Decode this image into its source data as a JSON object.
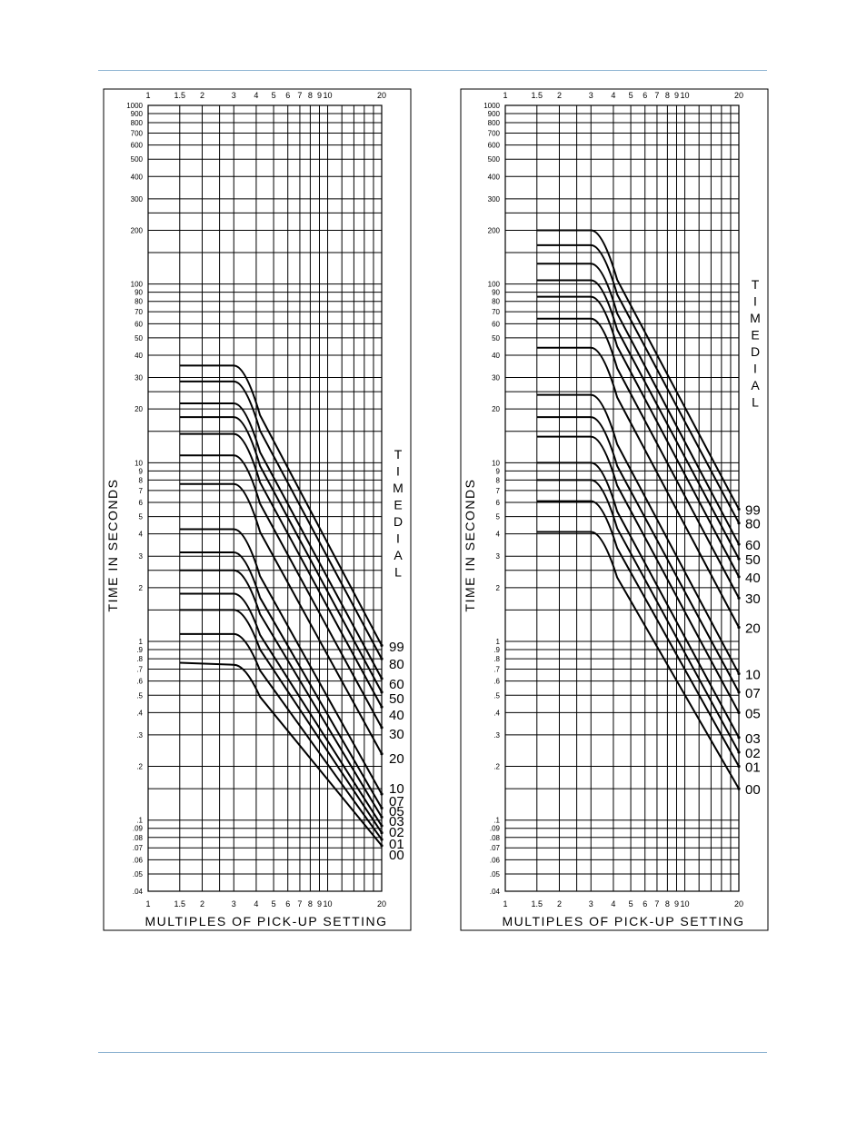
{
  "page": {
    "rule_color": "#8fb4d2"
  },
  "chart_data": [
    {
      "type": "line",
      "xscale": "log",
      "yscale": "log",
      "xlim": [
        1,
        20
      ],
      "ylim": [
        0.04,
        1000
      ],
      "xlabel": "MULTIPLES OF PICK-UP SETTING",
      "ylabel": "TIME IN SECONDS",
      "legend_title": "TIME DIAL",
      "legend_position": "right",
      "grid": true,
      "x_ticks": [
        "1",
        "1.5",
        "2",
        "3",
        "4",
        "5",
        "6",
        "7",
        "8",
        "9",
        "10",
        "20"
      ],
      "y_ticks": [
        "1000",
        "900",
        "800",
        "700",
        "600",
        "500",
        "400",
        "300",
        "200",
        "100",
        "90",
        "80",
        "70",
        "60",
        "50",
        "40",
        "30",
        "20",
        "10",
        "9",
        "8",
        "7",
        "6",
        "5",
        "4",
        "3",
        "2",
        "1",
        ".9",
        ".8",
        ".7",
        ".6",
        ".5",
        ".4",
        ".3",
        ".2",
        ".1",
        ".09",
        ".08",
        ".07",
        ".06",
        ".05",
        ".04"
      ],
      "series": [
        {
          "name": "99",
          "x": [
            1.5,
            3,
            20
          ],
          "y": [
            35,
            35,
            0.95
          ]
        },
        {
          "name": "80",
          "x": [
            1.5,
            3,
            20
          ],
          "y": [
            28.5,
            28.5,
            0.8
          ]
        },
        {
          "name": "60",
          "x": [
            1.5,
            3,
            20
          ],
          "y": [
            21.5,
            21.5,
            0.62
          ]
        },
        {
          "name": "50",
          "x": [
            1.5,
            3,
            20
          ],
          "y": [
            18,
            18,
            0.52
          ]
        },
        {
          "name": "40",
          "x": [
            1.5,
            3,
            20
          ],
          "y": [
            14.5,
            14.5,
            0.43
          ]
        },
        {
          "name": "30",
          "x": [
            1.5,
            3,
            20
          ],
          "y": [
            11,
            11,
            0.33
          ]
        },
        {
          "name": "20",
          "x": [
            1.5,
            3,
            20
          ],
          "y": [
            7.6,
            7.6,
            0.235
          ]
        },
        {
          "name": "10",
          "x": [
            1.5,
            3,
            20
          ],
          "y": [
            4.25,
            4.25,
            0.14
          ]
        },
        {
          "name": "07",
          "x": [
            1.5,
            3,
            20
          ],
          "y": [
            3.15,
            3.15,
            0.117
          ]
        },
        {
          "name": "05",
          "x": [
            1.5,
            3,
            20
          ],
          "y": [
            2.5,
            2.5,
            0.104
          ]
        },
        {
          "name": "03",
          "x": [
            1.5,
            3,
            20
          ],
          "y": [
            1.85,
            1.85,
            0.093
          ]
        },
        {
          "name": "02",
          "x": [
            1.5,
            3,
            20
          ],
          "y": [
            1.5,
            1.5,
            0.085
          ]
        },
        {
          "name": "01",
          "x": [
            1.5,
            3,
            20
          ],
          "y": [
            1.1,
            1.1,
            0.078
          ]
        },
        {
          "name": "00",
          "x": [
            1.5,
            3,
            20
          ],
          "y": [
            0.76,
            0.74,
            0.072
          ]
        }
      ]
    },
    {
      "type": "line",
      "xscale": "log",
      "yscale": "log",
      "xlim": [
        1,
        20
      ],
      "ylim": [
        0.04,
        1000
      ],
      "xlabel": "MULTIPLES OF PICK-UP SETTING",
      "ylabel": "TIME IN SECONDS",
      "legend_title": "TIME DIAL",
      "legend_position": "right",
      "grid": true,
      "x_ticks": [
        "1",
        "1.5",
        "2",
        "3",
        "4",
        "5",
        "6",
        "7",
        "8",
        "9",
        "10",
        "20"
      ],
      "y_ticks": [
        "1000",
        "900",
        "800",
        "700",
        "600",
        "500",
        "400",
        "300",
        "200",
        "100",
        "90",
        "80",
        "70",
        "60",
        "50",
        "40",
        "30",
        "20",
        "10",
        "9",
        "8",
        "7",
        "6",
        "5",
        "4",
        "3",
        "2",
        "1",
        ".9",
        ".8",
        ".7",
        ".6",
        ".5",
        ".4",
        ".3",
        ".2",
        ".1",
        ".09",
        ".08",
        ".07",
        ".06",
        ".05",
        ".04"
      ],
      "series": [
        {
          "name": "99",
          "x": [
            1.5,
            3,
            20
          ],
          "y": [
            200,
            200,
            5.5
          ]
        },
        {
          "name": "80",
          "x": [
            1.5,
            3,
            20
          ],
          "y": [
            165,
            165,
            4.6
          ]
        },
        {
          "name": "60",
          "x": [
            1.5,
            3,
            20
          ],
          "y": [
            130,
            130,
            3.5
          ]
        },
        {
          "name": "50",
          "x": [
            1.5,
            3,
            20
          ],
          "y": [
            105,
            105,
            2.9
          ]
        },
        {
          "name": "40",
          "x": [
            1.5,
            3,
            20
          ],
          "y": [
            85,
            85,
            2.3
          ]
        },
        {
          "name": "30",
          "x": [
            1.5,
            3,
            20
          ],
          "y": [
            64,
            64,
            1.75
          ]
        },
        {
          "name": "20",
          "x": [
            1.5,
            3,
            20
          ],
          "y": [
            44,
            44,
            1.2
          ]
        },
        {
          "name": "10",
          "x": [
            1.5,
            3,
            20
          ],
          "y": [
            24,
            24,
            0.66
          ]
        },
        {
          "name": "07",
          "x": [
            1.5,
            3,
            20
          ],
          "y": [
            18,
            18,
            0.52
          ]
        },
        {
          "name": "05",
          "x": [
            1.5,
            3,
            20
          ],
          "y": [
            14,
            14,
            0.4
          ]
        },
        {
          "name": "03",
          "x": [
            1.5,
            3,
            20
          ],
          "y": [
            10,
            10,
            0.29
          ]
        },
        {
          "name": "02",
          "x": [
            1.5,
            3,
            20
          ],
          "y": [
            8,
            8,
            0.24
          ]
        },
        {
          "name": "01",
          "x": [
            1.5,
            3,
            20
          ],
          "y": [
            6.1,
            6.1,
            0.2
          ]
        },
        {
          "name": "00",
          "x": [
            1.5,
            3,
            20
          ],
          "y": [
            4.1,
            4.1,
            0.15
          ]
        }
      ]
    }
  ]
}
